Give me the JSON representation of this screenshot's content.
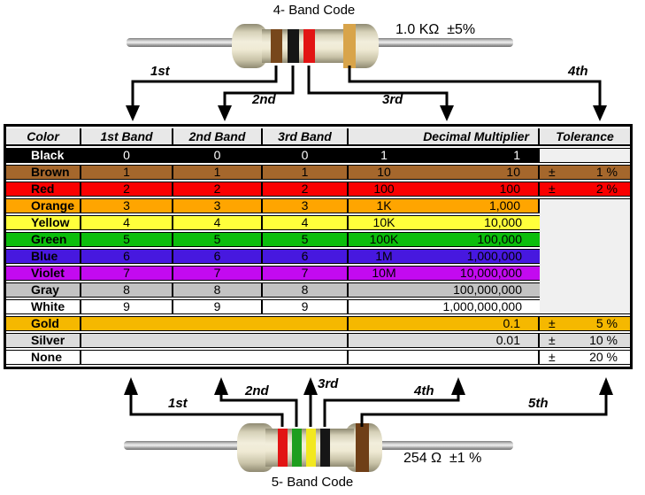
{
  "top_resistor": {
    "title": "4- Band Code",
    "value": "1.0 KΩ  ±5%",
    "arrows": [
      "1st",
      "2nd",
      "3rd",
      "4th"
    ],
    "bands": [
      {
        "name": "brown",
        "color": "#77471B"
      },
      {
        "name": "black",
        "color": "#161616"
      },
      {
        "name": "red",
        "color": "#E21414"
      },
      {
        "name": "gold",
        "color": "#D8A44A"
      }
    ]
  },
  "bottom_resistor": {
    "title": "5- Band Code",
    "value": "254 Ω  ±1 %",
    "arrows": [
      "1st",
      "2nd",
      "3rd",
      "4th",
      "5th"
    ],
    "bands": [
      {
        "name": "red",
        "color": "#E21414"
      },
      {
        "name": "green",
        "color": "#1E9E1E"
      },
      {
        "name": "yellow",
        "color": "#F2E81F"
      },
      {
        "name": "black",
        "color": "#161616"
      },
      {
        "name": "brown",
        "color": "#6F3F17"
      }
    ]
  },
  "table": {
    "headers": [
      "Color",
      "1st Band",
      "2nd Band",
      "3rd Band",
      "Decimal Multiplier",
      "Tolerance"
    ],
    "empty_tolerance_bg": "#F0F0F0",
    "rows": [
      {
        "color": "Black",
        "bg": "#000000",
        "fg": "#FFFFFF",
        "bands": [
          "0",
          "0",
          "0"
        ],
        "mult_short": "1",
        "mult_full": "1",
        "tol": {
          "mode": "empty"
        }
      },
      {
        "color": "Brown",
        "bg": "#A5672C",
        "fg": "#000000",
        "bands": [
          "1",
          "1",
          "1"
        ],
        "mult_short": "10",
        "mult_full": "10",
        "tol": {
          "mode": "value",
          "sign": "±",
          "value": "1 %"
        }
      },
      {
        "color": "Red",
        "bg": "#FA0000",
        "fg": "#000000",
        "bands": [
          "2",
          "2",
          "2"
        ],
        "mult_short": "100",
        "mult_full": "100",
        "tol": {
          "mode": "value",
          "sign": "±",
          "value": "2 %"
        }
      },
      {
        "color": "Orange",
        "bg": "#FFA500",
        "fg": "#000000",
        "bands": [
          "3",
          "3",
          "3"
        ],
        "mult_short": "1K",
        "mult_full": "1,000",
        "tol": {
          "mode": "merged-start",
          "span": 7
        }
      },
      {
        "color": "Yellow",
        "bg": "#FFFF3B",
        "fg": "#000000",
        "bands": [
          "4",
          "4",
          "4"
        ],
        "mult_short": "10K",
        "mult_full": "10,000",
        "tol": {
          "mode": "skip"
        }
      },
      {
        "color": "Green",
        "bg": "#0CBE0C",
        "fg": "#000000",
        "bands": [
          "5",
          "5",
          "5"
        ],
        "mult_short": "100K",
        "mult_full": "100,000",
        "tol": {
          "mode": "skip"
        }
      },
      {
        "color": "Blue",
        "bg": "#4718DF",
        "fg": "#000000",
        "bands": [
          "6",
          "6",
          "6"
        ],
        "mult_short": "1M",
        "mult_full": "1,000,000",
        "tol": {
          "mode": "skip"
        }
      },
      {
        "color": "Violet",
        "bg": "#C30AF0",
        "fg": "#000000",
        "bands": [
          "7",
          "7",
          "7"
        ],
        "mult_short": "10M",
        "mult_full": "10,000,000",
        "tol": {
          "mode": "skip"
        }
      },
      {
        "color": "Gray",
        "bg": "#C3C3C3",
        "fg": "#000000",
        "bands": [
          "8",
          "8",
          "8"
        ],
        "mult_short": "",
        "mult_full": "100,000,000",
        "tol": {
          "mode": "skip"
        }
      },
      {
        "color": "White",
        "bg": "#FFFFFF",
        "fg": "#000000",
        "bands": [
          "9",
          "9",
          "9"
        ],
        "mult_short": "",
        "mult_full": "1,000,000,000",
        "tol": {
          "mode": "skip"
        }
      },
      {
        "color": "Gold",
        "bg": "#F5B800",
        "fg": "#000000",
        "bands": null,
        "mult_short": "",
        "mult_full": "0.1",
        "tol": {
          "mode": "value",
          "sign": "±",
          "value": "5 %"
        }
      },
      {
        "color": "Silver",
        "bg": "#DCDCDC",
        "fg": "#000000",
        "bands": null,
        "mult_short": "",
        "mult_full": "0.01",
        "tol": {
          "mode": "value",
          "sign": "±",
          "value": "10 %"
        }
      },
      {
        "color": "None",
        "bg": "#FFFFFF",
        "fg": "#000000",
        "bands": null,
        "mult_short": "",
        "mult_full": "",
        "tol": {
          "mode": "value",
          "sign": "±",
          "value": "20 %"
        }
      }
    ]
  }
}
